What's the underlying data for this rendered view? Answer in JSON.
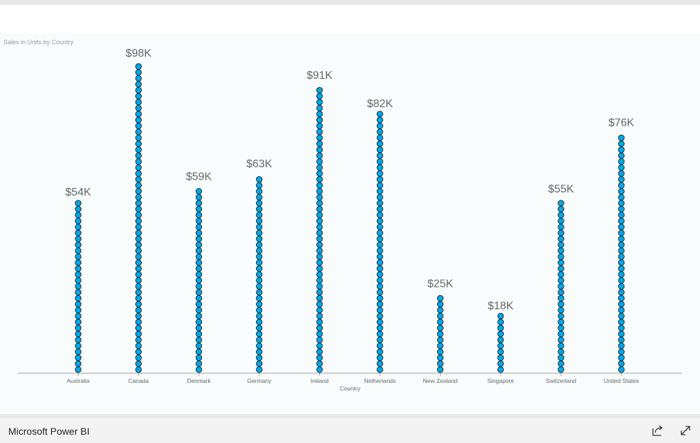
{
  "app": {
    "brand": "Microsoft Power BI"
  },
  "visual": {
    "title": "Sales in Units by Country"
  },
  "icons": {
    "share": "share-icon",
    "fullscreen": "expand-icon"
  },
  "colors": {
    "dot_fill": "#00a8e8",
    "dot_stroke": "#1a1a1a",
    "axis": "#a0a0a0",
    "label": "#666666"
  },
  "chart_data": {
    "type": "bar",
    "style": "stacked-dots",
    "title": "Sales in Units by Country",
    "xlabel": "Country",
    "ylabel": "",
    "ylim": [
      0,
      100000
    ],
    "grid": false,
    "categories": [
      "Australia",
      "Canada",
      "Denmark",
      "Germany",
      "Ireland",
      "Netherlands",
      "New Zealand",
      "Singapore",
      "Switzerland",
      "United States"
    ],
    "values": [
      54000,
      98000,
      59000,
      63000,
      91000,
      82000,
      25000,
      18000,
      55000,
      76000
    ],
    "data_labels": [
      "$54K",
      "$98K",
      "$59K",
      "$63K",
      "$91K",
      "$82K",
      "$25K",
      "$18K",
      "$55K",
      "$76K"
    ]
  }
}
